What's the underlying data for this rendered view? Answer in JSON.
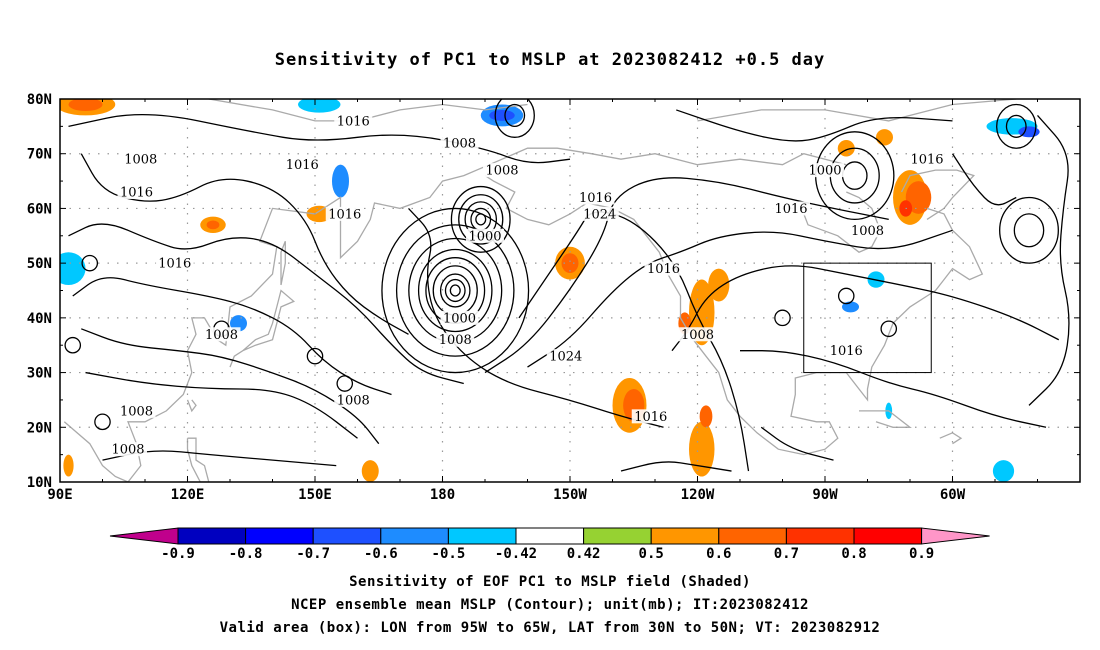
{
  "title": "Sensitivity of PC1 to MSLP at 2023082412 +0.5 day",
  "map": {
    "lat_labels": [
      "80N",
      "70N",
      "60N",
      "50N",
      "40N",
      "30N",
      "20N",
      "10N"
    ],
    "lon_labels": [
      "90E",
      "120E",
      "150E",
      "180",
      "150W",
      "120W",
      "90W",
      "60W"
    ],
    "contour_labels": [
      {
        "text": "1016",
        "lon": 159,
        "lat": 76
      },
      {
        "text": "1008",
        "lon": 109,
        "lat": 69
      },
      {
        "text": "1016",
        "lon": 147,
        "lat": 68
      },
      {
        "text": "1016",
        "lon": 108,
        "lat": 63
      },
      {
        "text": "1016",
        "lon": 157,
        "lat": 59
      },
      {
        "text": "1016",
        "lon": 117,
        "lat": 50
      },
      {
        "text": "1008",
        "lon": 184,
        "lat": 72
      },
      {
        "text": "1008",
        "lon": 194,
        "lat": 67
      },
      {
        "text": "1000",
        "lon": 190,
        "lat": 55
      },
      {
        "text": "1016",
        "lon": 216,
        "lat": 62
      },
      {
        "text": "1024",
        "lon": 217,
        "lat": 59
      },
      {
        "text": "1000",
        "lon": 270,
        "lat": 67
      },
      {
        "text": "1016",
        "lon": 262,
        "lat": 60
      },
      {
        "text": "1008",
        "lon": 280,
        "lat": 56
      },
      {
        "text": "1016",
        "lon": 294,
        "lat": 69
      },
      {
        "text": "1016",
        "lon": 232,
        "lat": 49
      },
      {
        "text": "1000",
        "lon": 184,
        "lat": 40
      },
      {
        "text": "1008",
        "lon": 183,
        "lat": 36
      },
      {
        "text": "1024",
        "lon": 209,
        "lat": 33
      },
      {
        "text": "1008",
        "lon": 240,
        "lat": 37
      },
      {
        "text": "1016",
        "lon": 275,
        "lat": 34
      },
      {
        "text": "1008",
        "lon": 128,
        "lat": 37
      },
      {
        "text": "1008",
        "lon": 108,
        "lat": 23
      },
      {
        "text": "1008",
        "lon": 159,
        "lat": 25
      },
      {
        "text": "1016",
        "lon": 229,
        "lat": 22
      },
      {
        "text": "1008",
        "lon": 106,
        "lat": 16
      }
    ],
    "valid_box": {
      "lon_min": 265,
      "lon_max": 295,
      "lat_min": 30,
      "lat_max": 50
    },
    "shaded_regions": [
      {
        "lon": 92,
        "lat": 49,
        "rx": 4,
        "ry": 3,
        "value": -0.5
      },
      {
        "lon": 96,
        "lat": 79,
        "rx": 7,
        "ry": 2,
        "value": 0.5
      },
      {
        "lon": 96,
        "lat": 79,
        "rx": 4,
        "ry": 1.2,
        "value": 0.6
      },
      {
        "lon": 151,
        "lat": 79,
        "rx": 5,
        "ry": 1.5,
        "value": -0.5
      },
      {
        "lon": 156,
        "lat": 65,
        "rx": 2,
        "ry": 3,
        "value": -0.6
      },
      {
        "lon": 126,
        "lat": 57,
        "rx": 3,
        "ry": 1.5,
        "value": 0.5
      },
      {
        "lon": 126,
        "lat": 57,
        "rx": 1.5,
        "ry": 0.8,
        "value": 0.6
      },
      {
        "lon": 132,
        "lat": 39,
        "rx": 2,
        "ry": 1.5,
        "value": -0.6
      },
      {
        "lon": 151,
        "lat": 59,
        "rx": 3,
        "ry": 1.5,
        "value": 0.5
      },
      {
        "lon": 194,
        "lat": 77,
        "rx": 5,
        "ry": 2,
        "value": -0.6
      },
      {
        "lon": 194,
        "lat": 77,
        "rx": 3,
        "ry": 1,
        "value": -0.7
      },
      {
        "lon": 210,
        "lat": 50,
        "rx": 3.5,
        "ry": 3,
        "value": 0.5
      },
      {
        "lon": 210,
        "lat": 50,
        "rx": 2,
        "ry": 1.8,
        "value": 0.6
      },
      {
        "lon": 241,
        "lat": 41,
        "rx": 3,
        "ry": 6,
        "value": 0.5
      },
      {
        "lon": 237,
        "lat": 39,
        "rx": 1.5,
        "ry": 2,
        "value": 0.6
      },
      {
        "lon": 245,
        "lat": 46,
        "rx": 2.5,
        "ry": 3,
        "value": 0.5
      },
      {
        "lon": 224,
        "lat": 24,
        "rx": 4,
        "ry": 5,
        "value": 0.5
      },
      {
        "lon": 225,
        "lat": 24,
        "rx": 2.5,
        "ry": 3,
        "value": 0.6
      },
      {
        "lon": 241,
        "lat": 16,
        "rx": 3,
        "ry": 5,
        "value": 0.5
      },
      {
        "lon": 242,
        "lat": 22,
        "rx": 1.5,
        "ry": 2,
        "value": 0.6
      },
      {
        "lon": 282,
        "lat": 47,
        "rx": 2,
        "ry": 1.5,
        "value": -0.5
      },
      {
        "lon": 276,
        "lat": 42,
        "rx": 2,
        "ry": 1,
        "value": -0.6
      },
      {
        "lon": 290,
        "lat": 62,
        "rx": 4,
        "ry": 5,
        "value": 0.5
      },
      {
        "lon": 292,
        "lat": 62,
        "rx": 3,
        "ry": 3,
        "value": 0.6
      },
      {
        "lon": 289,
        "lat": 60,
        "rx": 1.5,
        "ry": 1.5,
        "value": 0.7
      },
      {
        "lon": 314,
        "lat": 75,
        "rx": 6,
        "ry": 1.5,
        "value": -0.5
      },
      {
        "lon": 318,
        "lat": 74,
        "rx": 2.5,
        "ry": 1,
        "value": -0.7
      },
      {
        "lon": 312,
        "lat": 12,
        "rx": 2.5,
        "ry": 2,
        "value": -0.5
      },
      {
        "lon": 284,
        "lat": 73,
        "rx": 2,
        "ry": 1.5,
        "value": 0.5
      },
      {
        "lon": 275,
        "lat": 71,
        "rx": 2,
        "ry": 1.5,
        "value": 0.5
      },
      {
        "lon": 163,
        "lat": 12,
        "rx": 2,
        "ry": 2,
        "value": 0.5
      },
      {
        "lon": 285,
        "lat": 23,
        "rx": 0.8,
        "ry": 1.5,
        "value": -0.5
      },
      {
        "lon": 92,
        "lat": 13,
        "rx": 1.2,
        "ry": 2,
        "value": 0.5
      }
    ]
  },
  "colorbar": {
    "labels": [
      "-0.9",
      "-0.8",
      "-0.7",
      "-0.6",
      "-0.5",
      "-0.42",
      "0.42",
      "0.5",
      "0.6",
      "0.7",
      "0.8",
      "0.9"
    ],
    "colors": {
      "lt_-0.9": "#c0008c",
      "-0.9_-0.8": "#0000c0",
      "-0.8_-0.7": "#0000ff",
      "-0.7_-0.6": "#1e50ff",
      "-0.6_-0.5": "#1e8cff",
      "-0.5_-0.42": "#00c8ff",
      "-0.42_0.42": "#ffffff",
      "0.42_0.5": "#96d232",
      "0.5_0.6": "#ff9600",
      "0.6_0.7": "#ff6400",
      "0.7_0.8": "#ff3200",
      "0.8_0.9": "#ff0000",
      "gt_0.9": "#ff96c8"
    }
  },
  "caption": {
    "line1": "Sensitivity of EOF PC1 to MSLP field (Shaded)",
    "line2": "NCEP ensemble mean MSLP (Contour); unit(mb); IT:2023082412",
    "line3": "Valid area (box): LON from 95W to 65W, LAT from 30N to 50N; VT: 2023082912"
  }
}
